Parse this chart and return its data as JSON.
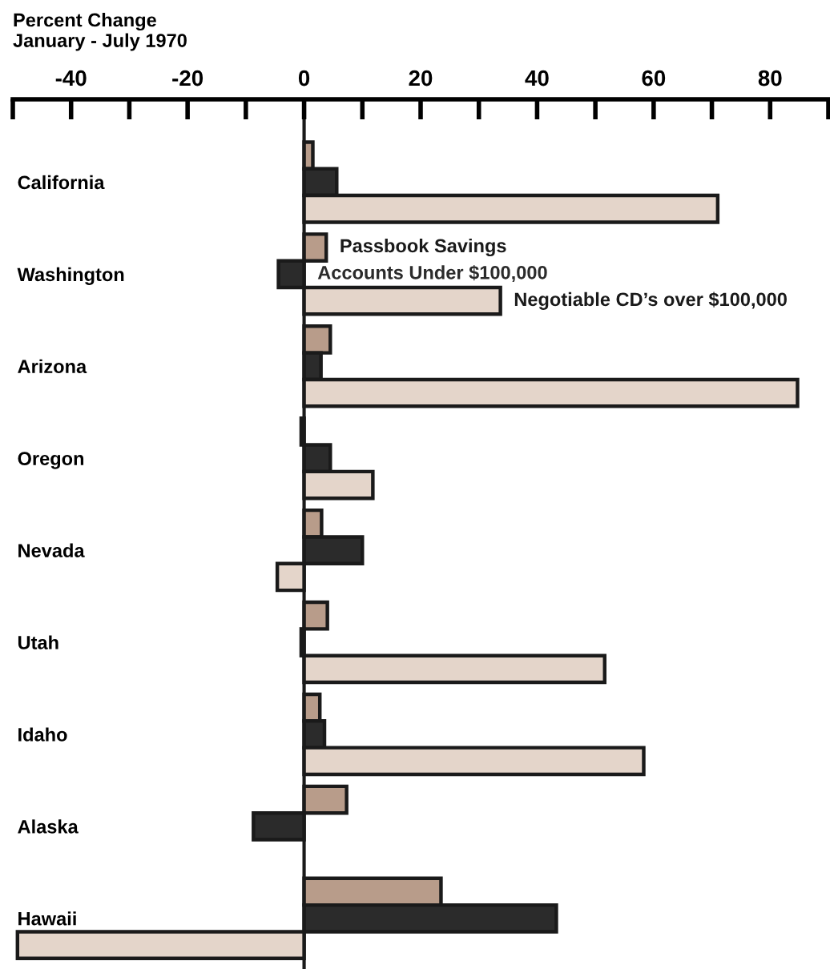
{
  "chart_data": {
    "type": "bar",
    "orientation": "horizontal",
    "title": "Percent Change\nJanuary - July 1970",
    "categories": [
      "California",
      "Washington",
      "Arizona",
      "Oregon",
      "Nevada",
      "Utah",
      "Idaho",
      "Alaska",
      "Hawaii"
    ],
    "series": [
      {
        "name": "Passbook Savings",
        "color": "#b89c8a",
        "values": [
          1.5,
          3.8,
          4.5,
          -0.5,
          3,
          4,
          2.7,
          7.3,
          23.5
        ]
      },
      {
        "name": "Accounts Under $100,000",
        "color": "#2b2b2b",
        "values": [
          5.6,
          -4.4,
          2.9,
          4.5,
          10,
          -0.5,
          3.5,
          -8.7,
          43.3
        ]
      },
      {
        "name": "Negotiable CD’s over $100,000",
        "color": "#e4d5ca",
        "values": [
          71,
          33.7,
          84.7,
          11.8,
          -4.6,
          51.6,
          58.3,
          null,
          -49.2
        ]
      }
    ],
    "xlim": [
      -50,
      90
    ],
    "xticks": [
      {
        "value": -50,
        "label": null
      },
      -40,
      {
        "value": -30,
        "label": null
      },
      -20,
      {
        "value": -10,
        "label": null
      },
      0,
      {
        "value": 10,
        "label": null
      },
      20,
      {
        "value": 30,
        "label": null
      },
      40,
      {
        "value": 50,
        "label": null
      },
      60,
      {
        "value": 70,
        "label": null
      },
      80,
      {
        "value": 90,
        "label": null
      }
    ],
    "ref_lines": [
      {
        "axis": "x",
        "value": 0,
        "color": "#1a1a1a"
      }
    ],
    "grid": false,
    "legend": false
  }
}
